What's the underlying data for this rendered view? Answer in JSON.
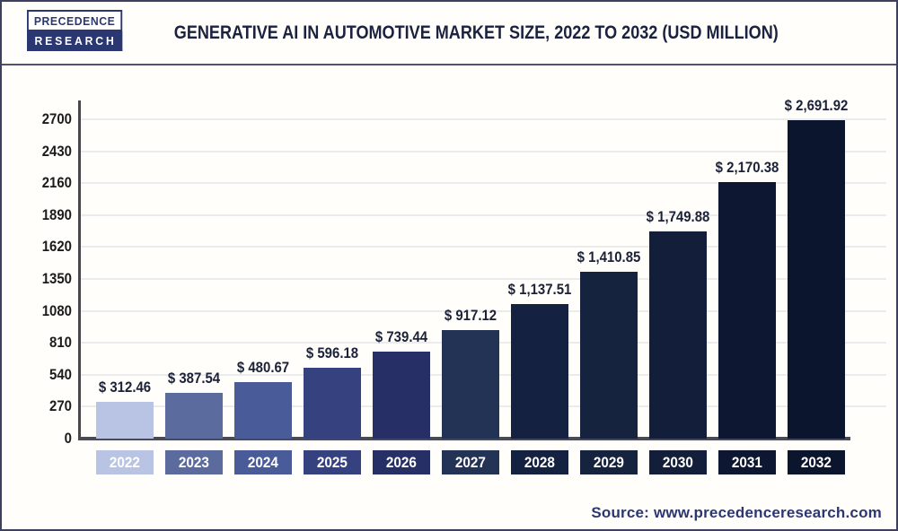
{
  "header": {
    "logo_line1": "Precedence",
    "logo_line2": "Research",
    "title": "Generative AI in Automotive Market Size, 2022 to 2032 (USD Million)"
  },
  "source_text": "Source: www.precedenceresearch.com",
  "chart_data": {
    "type": "bar",
    "title": "Generative AI in Automotive Market Size, 2022 to 2032 (USD Million)",
    "unit": "USD Million",
    "categories": [
      "2022",
      "2023",
      "2024",
      "2025",
      "2026",
      "2027",
      "2028",
      "2029",
      "2030",
      "2031",
      "2032"
    ],
    "values": [
      312.46,
      387.54,
      480.67,
      596.18,
      739.44,
      917.12,
      1137.51,
      1410.85,
      1749.88,
      2170.38,
      2691.92
    ],
    "value_labels": [
      "$ 312.46",
      "$ 387.54",
      "$ 480.67",
      "$ 596.18",
      "$ 739.44",
      "$ 917.12",
      "$ 1,137.51",
      "$ 1,410.85",
      "$ 1,749.88",
      "$ 2,170.38",
      "$ 2,691.92"
    ],
    "bar_colors": [
      "#b9c4e4",
      "#5b6b9e",
      "#4a5b9a",
      "#364180",
      "#272f67",
      "#233355",
      "#152140",
      "#16233f",
      "#121e3a",
      "#0e1731",
      "#0c152e"
    ],
    "ylim": [
      0,
      2700
    ],
    "yticks": [
      0,
      270,
      540,
      810,
      1080,
      1350,
      1620,
      1890,
      2160,
      2430,
      2700
    ],
    "grid": true,
    "legend": "none",
    "axis_color": "#4a4a57",
    "grid_color": "#ebebee",
    "value_label_color": "#1b2138",
    "title_color": "#1b2240",
    "accent_color": "#2b3770"
  }
}
